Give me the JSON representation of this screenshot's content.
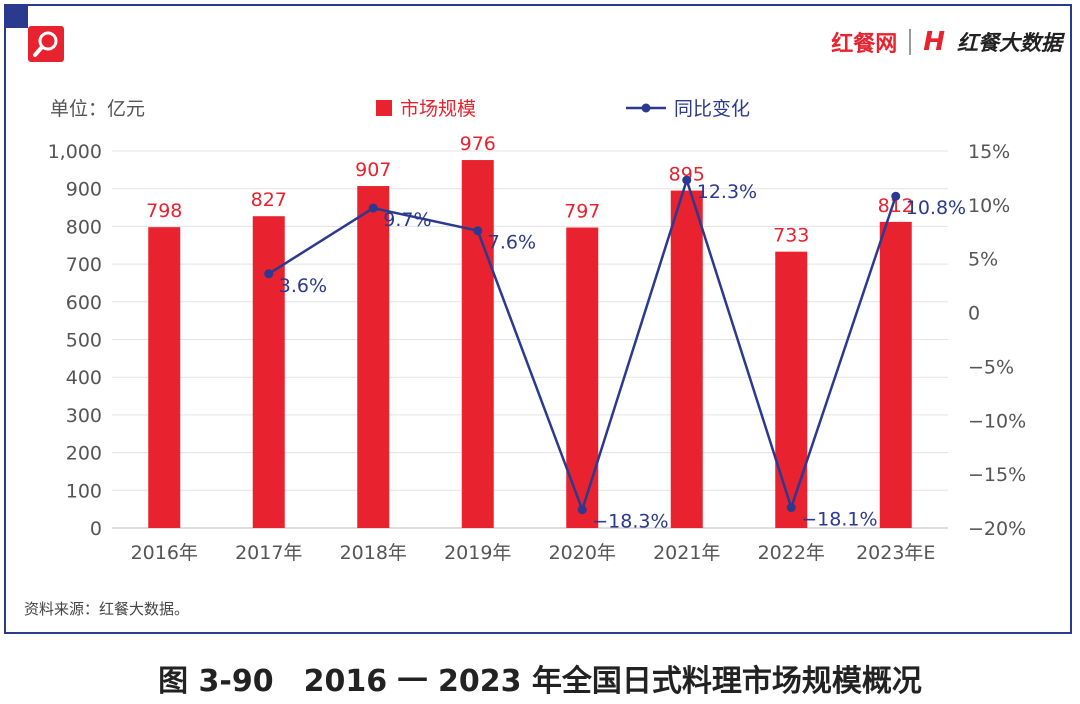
{
  "header": {
    "brand_name": "红餐网",
    "brand_mark": "H",
    "brand_sub": "红餐大数据"
  },
  "unit_label": "单位：亿元",
  "source": "资料来源：红餐大数据。",
  "caption": "图 3-90　2016 一 2023 年全国日式料理市场规模概况",
  "colors": {
    "bar": "#e8222e",
    "line": "#2b3990",
    "frame": "#2a3a8f"
  },
  "chart_data": {
    "type": "bar",
    "categories": [
      "2016年",
      "2017年",
      "2018年",
      "2019年",
      "2020年",
      "2021年",
      "2022年",
      "2023年E"
    ],
    "series": [
      {
        "name": "市场规模",
        "type": "bar",
        "axis": "left",
        "values": [
          798,
          827,
          907,
          976,
          797,
          895,
          733,
          812
        ],
        "labels": [
          "798",
          "827",
          "907",
          "976",
          "797",
          "895",
          "733",
          "812"
        ]
      },
      {
        "name": "同比变化",
        "type": "line",
        "axis": "right",
        "values": [
          null,
          3.6,
          9.7,
          7.6,
          -18.3,
          12.3,
          -18.1,
          10.8
        ],
        "labels": [
          "",
          "3.6%",
          "9.7%",
          "7.6%",
          "−18.3%",
          "12.3%",
          "−18.1%",
          "10.8%"
        ]
      }
    ],
    "y_left": {
      "ylim": [
        0,
        1000
      ],
      "ticks": [
        0,
        100,
        200,
        300,
        400,
        500,
        600,
        700,
        800,
        900,
        1000
      ],
      "tick_labels": [
        "0",
        "100",
        "200",
        "300",
        "400",
        "500",
        "600",
        "700",
        "800",
        "900",
        "1,000"
      ]
    },
    "y_right": {
      "ylim": [
        -20,
        15
      ],
      "ticks": [
        -20,
        -15,
        -10,
        -5,
        0,
        5,
        10,
        15
      ],
      "tick_labels": [
        "−20%",
        "−15%",
        "−10%",
        "−5%",
        "0",
        "5%",
        "10%",
        "15%"
      ]
    },
    "grid": true,
    "legend": "top"
  }
}
